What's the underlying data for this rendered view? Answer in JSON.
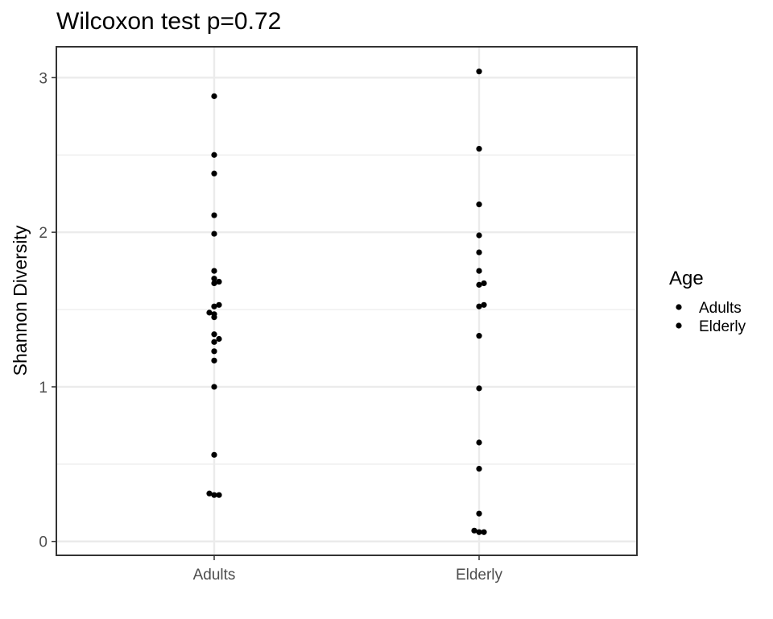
{
  "chart_data": {
    "type": "scatter",
    "title": "Wilcoxon test p=0.72",
    "xlabel": "",
    "ylabel": "Shannon Diversity",
    "categories": [
      "Adults",
      "Elderly"
    ],
    "y_ticks": [
      "0",
      "1",
      "2",
      "3"
    ],
    "ylim": [
      -0.09,
      3.2
    ],
    "grid": true,
    "legend": {
      "title": "Age",
      "position": "right",
      "entries": [
        "Adults",
        "Elderly"
      ]
    },
    "series": [
      {
        "name": "Adults",
        "category": "Adults",
        "color": "#000000",
        "points": [
          {
            "y": 2.88,
            "jitter": 0
          },
          {
            "y": 2.5,
            "jitter": 0
          },
          {
            "y": 2.38,
            "jitter": 0
          },
          {
            "y": 2.11,
            "jitter": 0
          },
          {
            "y": 1.99,
            "jitter": 0
          },
          {
            "y": 1.75,
            "jitter": 0
          },
          {
            "y": 1.7,
            "jitter": 0
          },
          {
            "y": 1.68,
            "jitter": 1
          },
          {
            "y": 1.67,
            "jitter": 0
          },
          {
            "y": 1.53,
            "jitter": 1
          },
          {
            "y": 1.52,
            "jitter": 0
          },
          {
            "y": 1.48,
            "jitter": -1
          },
          {
            "y": 1.47,
            "jitter": 0
          },
          {
            "y": 1.45,
            "jitter": 0
          },
          {
            "y": 1.34,
            "jitter": 0
          },
          {
            "y": 1.31,
            "jitter": 1
          },
          {
            "y": 1.29,
            "jitter": 0
          },
          {
            "y": 1.23,
            "jitter": 0
          },
          {
            "y": 1.17,
            "jitter": 0
          },
          {
            "y": 1.0,
            "jitter": 0
          },
          {
            "y": 0.56,
            "jitter": 0
          },
          {
            "y": 0.31,
            "jitter": -1
          },
          {
            "y": 0.3,
            "jitter": 0
          },
          {
            "y": 0.3,
            "jitter": 1
          }
        ]
      },
      {
        "name": "Elderly",
        "category": "Elderly",
        "color": "#000000",
        "points": [
          {
            "y": 3.04,
            "jitter": 0
          },
          {
            "y": 2.54,
            "jitter": 0
          },
          {
            "y": 2.18,
            "jitter": 0
          },
          {
            "y": 1.98,
            "jitter": 0
          },
          {
            "y": 1.87,
            "jitter": 0
          },
          {
            "y": 1.75,
            "jitter": 0
          },
          {
            "y": 1.67,
            "jitter": 1
          },
          {
            "y": 1.66,
            "jitter": 0
          },
          {
            "y": 1.53,
            "jitter": 1
          },
          {
            "y": 1.52,
            "jitter": 0
          },
          {
            "y": 1.33,
            "jitter": 0
          },
          {
            "y": 0.99,
            "jitter": 0
          },
          {
            "y": 0.64,
            "jitter": 0
          },
          {
            "y": 0.47,
            "jitter": 0
          },
          {
            "y": 0.18,
            "jitter": 0
          },
          {
            "y": 0.07,
            "jitter": -1
          },
          {
            "y": 0.06,
            "jitter": 0
          },
          {
            "y": 0.06,
            "jitter": 1
          }
        ]
      }
    ]
  }
}
